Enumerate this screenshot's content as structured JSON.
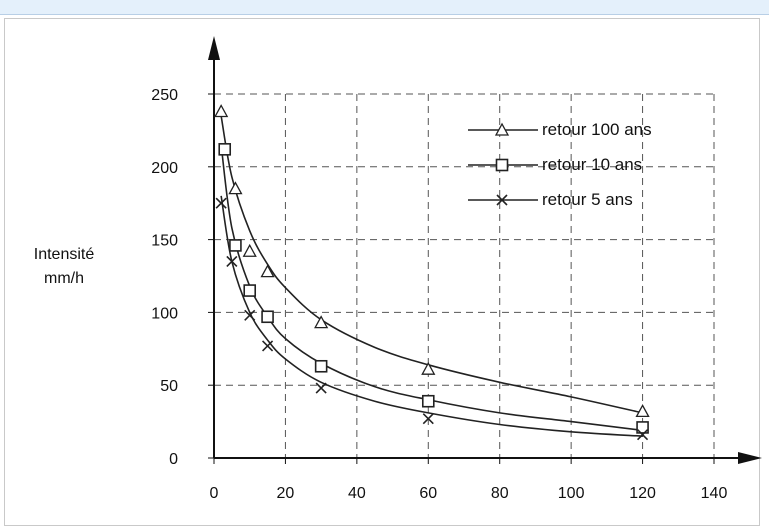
{
  "chart_data": {
    "type": "scatter",
    "ylabel_line1": "Intensité",
    "ylabel_line2": "mm/h",
    "xlim": [
      0,
      140
    ],
    "ylim": [
      0,
      250
    ],
    "x_ticks": [
      "0",
      "20",
      "40",
      "60",
      "80",
      "100",
      "120",
      "140"
    ],
    "y_ticks": [
      "0",
      "50",
      "100",
      "150",
      "200",
      "250"
    ],
    "grid": true,
    "legend_position": "top-right",
    "series": [
      {
        "name": "retour 100 ans",
        "marker": "triangle",
        "x": [
          2,
          6,
          10,
          15,
          30,
          60,
          120
        ],
        "y": [
          238,
          185,
          142,
          128,
          93,
          61,
          32
        ],
        "fit": [
          [
            2,
            235
          ],
          [
            5,
            193
          ],
          [
            10,
            156
          ],
          [
            15,
            133
          ],
          [
            20,
            117
          ],
          [
            30,
            95
          ],
          [
            45,
            76
          ],
          [
            60,
            64
          ],
          [
            80,
            52
          ],
          [
            100,
            42
          ],
          [
            120,
            31
          ]
        ]
      },
      {
        "name": "retour 10 ans",
        "marker": "square",
        "x": [
          3,
          6,
          10,
          15,
          30,
          60,
          120
        ],
        "y": [
          212,
          146,
          115,
          97,
          63,
          39,
          21
        ],
        "fit": [
          [
            2,
            215
          ],
          [
            5,
            158
          ],
          [
            10,
            118
          ],
          [
            15,
            97
          ],
          [
            20,
            82
          ],
          [
            30,
            65
          ],
          [
            45,
            49
          ],
          [
            60,
            40
          ],
          [
            80,
            31
          ],
          [
            100,
            25
          ],
          [
            120,
            19
          ]
        ]
      },
      {
        "name": "retour 5 ans",
        "marker": "x",
        "x": [
          2,
          5,
          10,
          15,
          30,
          60,
          120
        ],
        "y": [
          175,
          135,
          98,
          77,
          48,
          27,
          16
        ],
        "fit": [
          [
            2,
            180
          ],
          [
            5,
            135
          ],
          [
            10,
            100
          ],
          [
            15,
            81
          ],
          [
            20,
            68
          ],
          [
            30,
            52
          ],
          [
            45,
            39
          ],
          [
            60,
            31
          ],
          [
            80,
            23
          ],
          [
            100,
            18
          ],
          [
            120,
            15
          ]
        ]
      }
    ]
  }
}
